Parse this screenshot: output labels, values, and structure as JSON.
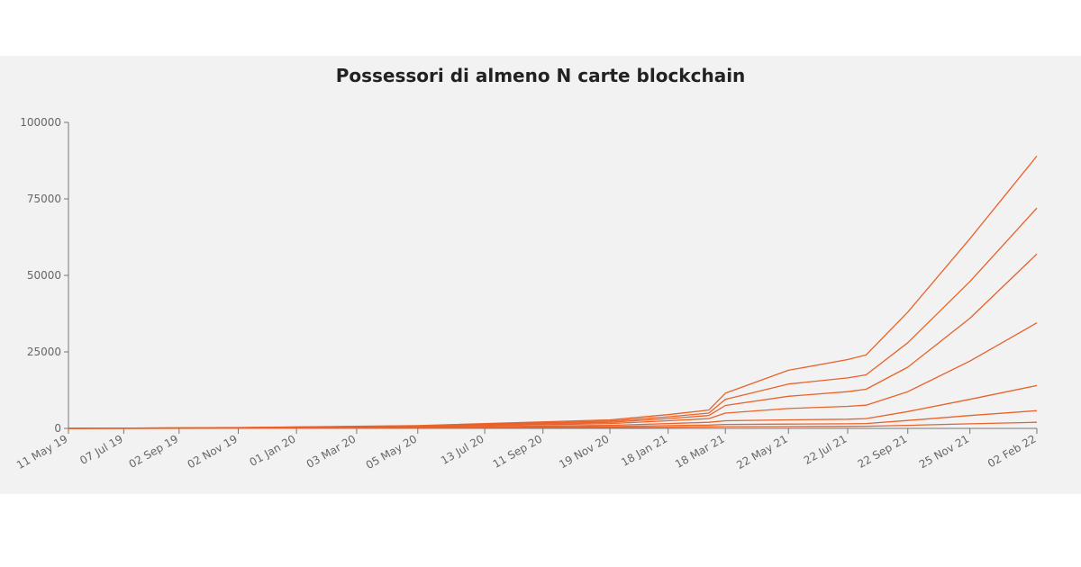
{
  "chart_data": {
    "type": "line",
    "title": "Possessori di almeno N carte blockchain",
    "xlabel": "",
    "ylabel": "",
    "ylim": [
      0,
      100000
    ],
    "yticks": [
      "0",
      "25000",
      "50000",
      "75000",
      "100000"
    ],
    "xticks": [
      "11 May 19",
      "07 Jul 19",
      "02 Sep 19",
      "02 Nov 19",
      "01 Jan 20",
      "03 Mar 20",
      "05 May 20",
      "13 Jul 20",
      "11 Sep 20",
      "19 Nov 20",
      "18 Jan 21",
      "18 Mar 21",
      "22 May 21",
      "22 Jul 21",
      "22 Sep 21",
      "25 Nov 21",
      "02 Feb 22"
    ],
    "xlim": [
      "2019-05-11",
      "2022-02-02"
    ],
    "grid": false,
    "legend": "none",
    "line_color": "#e8622a",
    "series": [
      {
        "x": [
          "2019-05-11",
          "2019-11-02",
          "2020-05-05",
          "2020-11-19",
          "2021-01-18",
          "2021-03-01",
          "2021-03-18",
          "2021-05-22",
          "2021-07-22",
          "2021-08-10",
          "2021-09-22",
          "2021-11-25",
          "2022-02-02"
        ],
        "values": [
          0,
          300,
          900,
          2800,
          4500,
          6000,
          11500,
          19000,
          22500,
          24000,
          38000,
          62000,
          89000
        ]
      },
      {
        "x": [
          "2019-05-11",
          "2019-11-02",
          "2020-05-05",
          "2020-11-19",
          "2021-01-18",
          "2021-03-01",
          "2021-03-18",
          "2021-05-22",
          "2021-07-22",
          "2021-08-10",
          "2021-09-22",
          "2021-11-25",
          "2022-02-02"
        ],
        "values": [
          0,
          250,
          800,
          2400,
          3800,
          5000,
          9500,
          14500,
          16500,
          17500,
          28000,
          48000,
          72000
        ]
      },
      {
        "x": [
          "2019-05-11",
          "2019-11-02",
          "2020-05-05",
          "2020-11-19",
          "2021-01-18",
          "2021-03-01",
          "2021-03-18",
          "2021-05-22",
          "2021-07-22",
          "2021-08-10",
          "2021-09-22",
          "2021-11-25",
          "2022-02-02"
        ],
        "values": [
          0,
          200,
          700,
          2000,
          3200,
          4200,
          7500,
          10500,
          12000,
          12800,
          20000,
          36000,
          57000
        ]
      },
      {
        "x": [
          "2019-05-11",
          "2019-11-02",
          "2020-05-05",
          "2020-11-19",
          "2021-01-18",
          "2021-03-01",
          "2021-03-18",
          "2021-05-22",
          "2021-07-22",
          "2021-08-10",
          "2021-09-22",
          "2021-11-25",
          "2022-02-02"
        ],
        "values": [
          0,
          150,
          500,
          1600,
          2500,
          3200,
          5000,
          6500,
          7200,
          7600,
          12000,
          22000,
          34500
        ]
      },
      {
        "x": [
          "2019-05-11",
          "2019-11-02",
          "2020-05-05",
          "2020-11-19",
          "2021-01-18",
          "2021-03-01",
          "2021-03-18",
          "2021-05-22",
          "2021-07-22",
          "2021-08-10",
          "2021-09-22",
          "2021-11-25",
          "2022-02-02"
        ],
        "values": [
          0,
          100,
          300,
          1000,
          1600,
          2000,
          2500,
          2800,
          3000,
          3200,
          5500,
          9500,
          14000
        ]
      },
      {
        "x": [
          "2019-05-11",
          "2019-11-02",
          "2020-05-05",
          "2020-11-19",
          "2021-01-18",
          "2021-03-01",
          "2021-03-18",
          "2021-05-22",
          "2021-07-22",
          "2021-08-10",
          "2021-09-22",
          "2021-11-25",
          "2022-02-02"
        ],
        "values": [
          0,
          60,
          200,
          600,
          900,
          1100,
          1300,
          1400,
          1500,
          1600,
          2600,
          4200,
          5800
        ]
      },
      {
        "x": [
          "2019-05-11",
          "2019-11-02",
          "2020-05-05",
          "2020-11-19",
          "2021-01-18",
          "2021-03-01",
          "2021-03-18",
          "2021-05-22",
          "2021-07-22",
          "2021-08-10",
          "2021-09-22",
          "2021-11-25",
          "2022-02-02"
        ],
        "values": [
          0,
          30,
          100,
          250,
          400,
          500,
          550,
          600,
          650,
          700,
          1000,
          1500,
          2000
        ]
      }
    ]
  }
}
